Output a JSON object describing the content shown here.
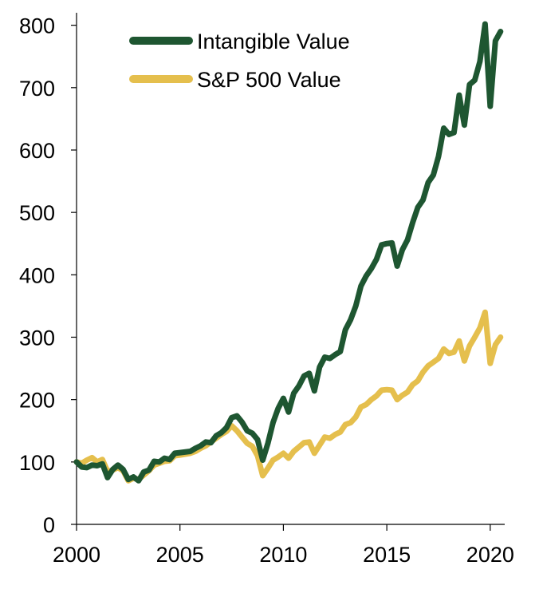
{
  "chart_data": {
    "type": "line",
    "title": "",
    "xlabel": "",
    "ylabel": "",
    "xlim": [
      2000,
      2020.7
    ],
    "ylim": [
      0,
      820
    ],
    "x_ticks": [
      "2000",
      "2005",
      "2010",
      "2015",
      "2020"
    ],
    "y_ticks": [
      "0",
      "100",
      "200",
      "300",
      "400",
      "500",
      "600",
      "700",
      "800"
    ],
    "grid": false,
    "legend_position": "top-left",
    "series": [
      {
        "name": "Intangible Value",
        "color": "#1e5631",
        "points": [
          [
            2000.0,
            100
          ],
          [
            2000.25,
            92
          ],
          [
            2000.5,
            91
          ],
          [
            2000.75,
            95
          ],
          [
            2001.0,
            94
          ],
          [
            2001.25,
            97
          ],
          [
            2001.5,
            75
          ],
          [
            2001.75,
            88
          ],
          [
            2002.0,
            95
          ],
          [
            2002.25,
            88
          ],
          [
            2002.5,
            72
          ],
          [
            2002.75,
            76
          ],
          [
            2003.0,
            70
          ],
          [
            2003.25,
            84
          ],
          [
            2003.5,
            87
          ],
          [
            2003.75,
            101
          ],
          [
            2004.0,
            100
          ],
          [
            2004.25,
            106
          ],
          [
            2004.5,
            104
          ],
          [
            2004.75,
            114
          ],
          [
            2005.0,
            115
          ],
          [
            2005.5,
            117
          ],
          [
            2005.75,
            122
          ],
          [
            2006.0,
            126
          ],
          [
            2006.25,
            132
          ],
          [
            2006.5,
            131
          ],
          [
            2006.75,
            142
          ],
          [
            2007.0,
            147
          ],
          [
            2007.25,
            155
          ],
          [
            2007.5,
            171
          ],
          [
            2007.75,
            174
          ],
          [
            2008.0,
            164
          ],
          [
            2008.25,
            150
          ],
          [
            2008.5,
            146
          ],
          [
            2008.75,
            136
          ],
          [
            2009.0,
            103
          ],
          [
            2009.25,
            130
          ],
          [
            2009.5,
            163
          ],
          [
            2009.75,
            186
          ],
          [
            2010.0,
            202
          ],
          [
            2010.25,
            180
          ],
          [
            2010.5,
            210
          ],
          [
            2010.75,
            222
          ],
          [
            2011.0,
            238
          ],
          [
            2011.25,
            242
          ],
          [
            2011.5,
            214
          ],
          [
            2011.75,
            252
          ],
          [
            2012.0,
            268
          ],
          [
            2012.25,
            266
          ],
          [
            2012.5,
            272
          ],
          [
            2012.75,
            277
          ],
          [
            2013.0,
            312
          ],
          [
            2013.25,
            328
          ],
          [
            2013.5,
            350
          ],
          [
            2013.75,
            382
          ],
          [
            2014.0,
            398
          ],
          [
            2014.25,
            410
          ],
          [
            2014.5,
            425
          ],
          [
            2014.75,
            448
          ],
          [
            2015.0,
            450
          ],
          [
            2015.25,
            451
          ],
          [
            2015.5,
            414
          ],
          [
            2015.75,
            440
          ],
          [
            2016.0,
            456
          ],
          [
            2016.25,
            484
          ],
          [
            2016.5,
            508
          ],
          [
            2016.75,
            520
          ],
          [
            2017.0,
            548
          ],
          [
            2017.25,
            560
          ],
          [
            2017.5,
            590
          ],
          [
            2017.75,
            635
          ],
          [
            2018.0,
            625
          ],
          [
            2018.25,
            628
          ],
          [
            2018.5,
            688
          ],
          [
            2018.75,
            640
          ],
          [
            2019.0,
            705
          ],
          [
            2019.25,
            712
          ],
          [
            2019.5,
            742
          ],
          [
            2019.75,
            802
          ],
          [
            2020.0,
            670
          ],
          [
            2020.25,
            775
          ],
          [
            2020.5,
            790
          ]
        ]
      },
      {
        "name": "S&P 500 Value",
        "color": "#e5bf4d",
        "points": [
          [
            2000.0,
            100
          ],
          [
            2000.25,
            98
          ],
          [
            2000.5,
            103
          ],
          [
            2000.75,
            107
          ],
          [
            2001.0,
            100
          ],
          [
            2001.25,
            104
          ],
          [
            2001.5,
            85
          ],
          [
            2001.75,
            87
          ],
          [
            2002.0,
            91
          ],
          [
            2002.25,
            86
          ],
          [
            2002.5,
            70
          ],
          [
            2002.75,
            74
          ],
          [
            2003.0,
            72
          ],
          [
            2003.25,
            79
          ],
          [
            2003.5,
            86
          ],
          [
            2003.75,
            95
          ],
          [
            2004.0,
            98
          ],
          [
            2004.25,
            101
          ],
          [
            2004.5,
            102
          ],
          [
            2004.75,
            110
          ],
          [
            2005.0,
            111
          ],
          [
            2005.5,
            114
          ],
          [
            2005.75,
            117
          ],
          [
            2006.0,
            122
          ],
          [
            2006.25,
            126
          ],
          [
            2006.5,
            132
          ],
          [
            2006.75,
            138
          ],
          [
            2007.0,
            144
          ],
          [
            2007.25,
            149
          ],
          [
            2007.5,
            158
          ],
          [
            2007.75,
            150
          ],
          [
            2008.0,
            140
          ],
          [
            2008.25,
            130
          ],
          [
            2008.5,
            125
          ],
          [
            2008.75,
            110
          ],
          [
            2009.0,
            78
          ],
          [
            2009.25,
            90
          ],
          [
            2009.5,
            103
          ],
          [
            2009.75,
            108
          ],
          [
            2010.0,
            114
          ],
          [
            2010.25,
            106
          ],
          [
            2010.5,
            117
          ],
          [
            2010.75,
            124
          ],
          [
            2011.0,
            131
          ],
          [
            2011.25,
            132
          ],
          [
            2011.5,
            114
          ],
          [
            2011.75,
            127
          ],
          [
            2012.0,
            140
          ],
          [
            2012.25,
            138
          ],
          [
            2012.5,
            144
          ],
          [
            2012.75,
            148
          ],
          [
            2013.0,
            160
          ],
          [
            2013.25,
            163
          ],
          [
            2013.5,
            172
          ],
          [
            2013.75,
            188
          ],
          [
            2014.0,
            192
          ],
          [
            2014.25,
            200
          ],
          [
            2014.5,
            206
          ],
          [
            2014.75,
            215
          ],
          [
            2015.0,
            216
          ],
          [
            2015.25,
            215
          ],
          [
            2015.5,
            200
          ],
          [
            2015.75,
            207
          ],
          [
            2016.0,
            212
          ],
          [
            2016.25,
            224
          ],
          [
            2016.5,
            230
          ],
          [
            2016.75,
            244
          ],
          [
            2017.0,
            254
          ],
          [
            2017.25,
            260
          ],
          [
            2017.5,
            266
          ],
          [
            2017.75,
            281
          ],
          [
            2018.0,
            274
          ],
          [
            2018.25,
            276
          ],
          [
            2018.5,
            294
          ],
          [
            2018.75,
            262
          ],
          [
            2019.0,
            286
          ],
          [
            2019.25,
            300
          ],
          [
            2019.5,
            315
          ],
          [
            2019.75,
            340
          ],
          [
            2020.0,
            258
          ],
          [
            2020.25,
            288
          ],
          [
            2020.5,
            300
          ]
        ]
      }
    ]
  }
}
